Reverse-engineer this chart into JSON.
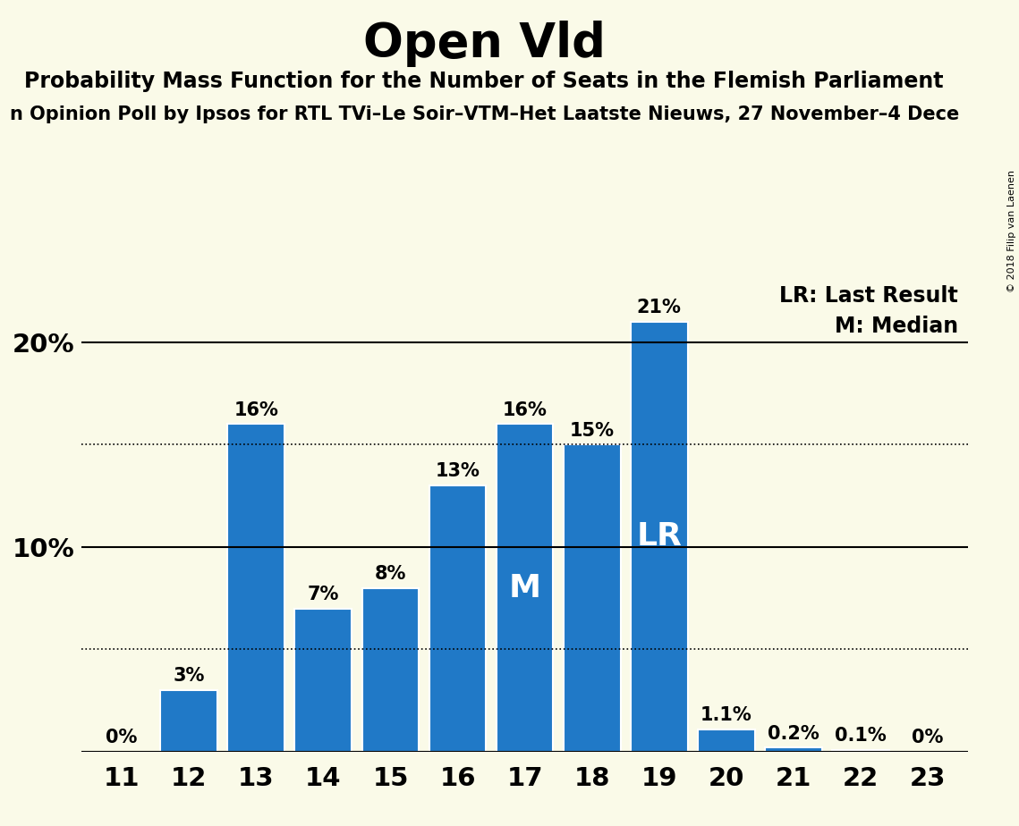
{
  "title": "Open Vld",
  "subtitle": "Probability Mass Function for the Number of Seats in the Flemish Parliament",
  "source_line": "n Opinion Poll by Ipsos for RTL TVi–Le Soir–VTM–Het Laatste Nieuws, 27 November–4 Dece",
  "copyright": "© 2018 Filip van Laenen",
  "categories": [
    11,
    12,
    13,
    14,
    15,
    16,
    17,
    18,
    19,
    20,
    21,
    22,
    23
  ],
  "values": [
    0.0,
    3.0,
    16.0,
    7.0,
    8.0,
    13.0,
    16.0,
    15.0,
    21.0,
    1.1,
    0.2,
    0.1,
    0.0
  ],
  "bar_labels": [
    "0%",
    "3%",
    "16%",
    "7%",
    "8%",
    "13%",
    "16%",
    "15%",
    "21%",
    "1.1%",
    "0.2%",
    "0.1%",
    "0%"
  ],
  "bar_color": "#2079c7",
  "background_color": "#fafae8",
  "median_seat": 17,
  "lr_seat": 19,
  "median_label": "M",
  "lr_label": "LR",
  "legend_lr": "LR: Last Result",
  "legend_m": "M: Median",
  "ylim": [
    0,
    23
  ],
  "dotted_lines": [
    5.0,
    15.0
  ],
  "solid_lines": [
    10.0,
    20.0
  ],
  "title_fontsize": 38,
  "subtitle_fontsize": 17,
  "source_fontsize": 15,
  "bar_label_fontsize": 15,
  "axis_label_fontsize": 21,
  "inside_label_fontsize": 26,
  "legend_fontsize": 17
}
